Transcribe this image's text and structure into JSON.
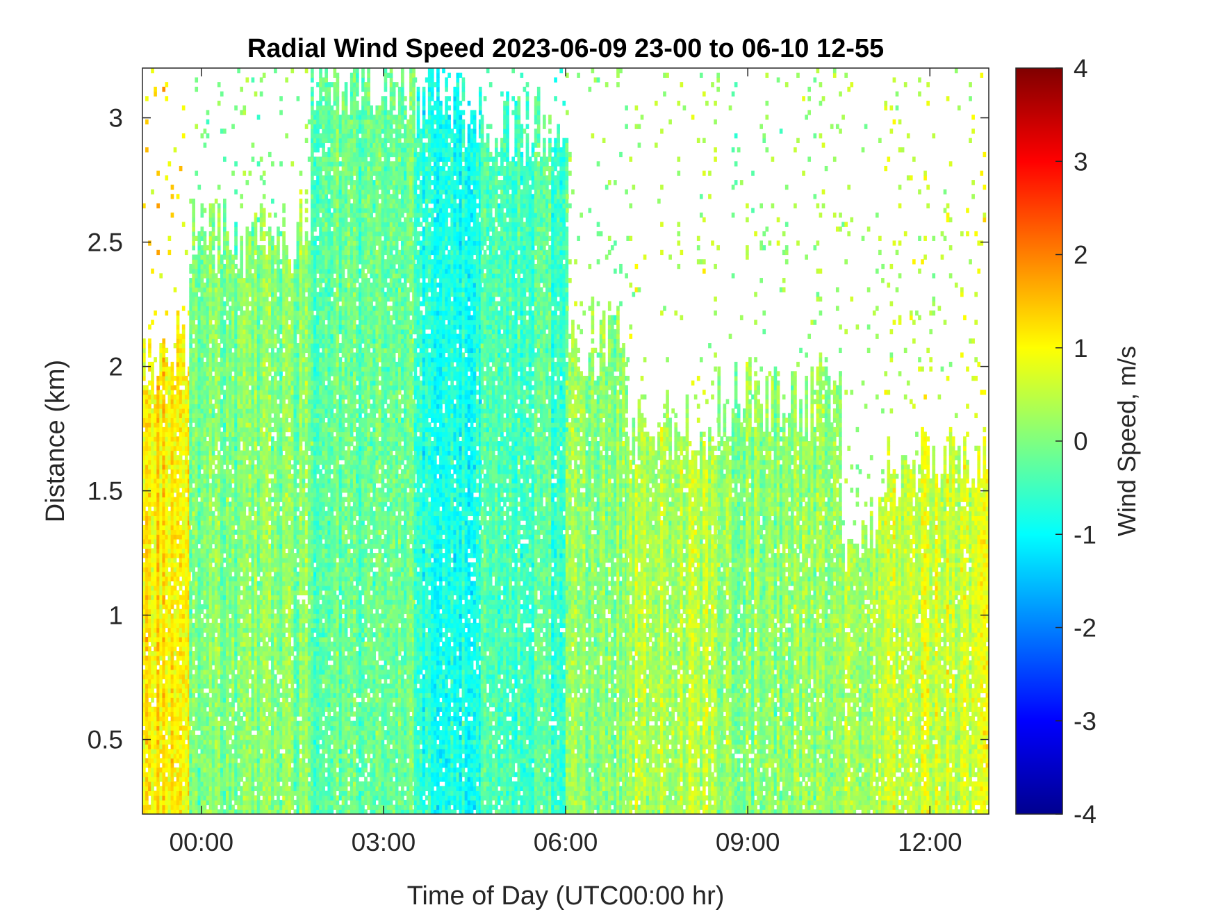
{
  "chart_data": {
    "type": "heatmap",
    "title": "Radial Wind Speed 2023-06-09 23-00 to 06-10 12-55",
    "xlabel": "Time of Day (UTC00:00 hr)",
    "ylabel": "Distance (km)",
    "colorbar_label": "Wind Speed, m/s",
    "colormap": "jet",
    "x_range_hours": [
      -0.97,
      12.97
    ],
    "y_range_km": [
      0.2,
      3.2
    ],
    "x_ticks": [
      {
        "value": 0,
        "label": "00:00"
      },
      {
        "value": 3,
        "label": "03:00"
      },
      {
        "value": 6,
        "label": "06:00"
      },
      {
        "value": 9,
        "label": "09:00"
      },
      {
        "value": 12,
        "label": "12:00"
      }
    ],
    "y_ticks": [
      {
        "value": 0.5,
        "label": "0.5"
      },
      {
        "value": 1,
        "label": "1"
      },
      {
        "value": 1.5,
        "label": "1.5"
      },
      {
        "value": 2,
        "label": "2"
      },
      {
        "value": 2.5,
        "label": "2.5"
      },
      {
        "value": 3,
        "label": "3"
      }
    ],
    "color_range": [
      -4,
      4
    ],
    "colorbar_ticks": [
      {
        "value": -4,
        "label": "-4"
      },
      {
        "value": -3,
        "label": "-3"
      },
      {
        "value": -2,
        "label": "-2"
      },
      {
        "value": -1,
        "label": "-1"
      },
      {
        "value": 0,
        "label": "0"
      },
      {
        "value": 1,
        "label": "1"
      },
      {
        "value": 2,
        "label": "2"
      },
      {
        "value": 3,
        "label": "3"
      },
      {
        "value": 4,
        "label": "4"
      }
    ],
    "data_coverage": [
      {
        "t0": -0.97,
        "t1": -0.2,
        "top_km": 2.05,
        "mean_ms": 1.1
      },
      {
        "t0": -0.2,
        "t1": 1.8,
        "top_km": 2.5,
        "mean_ms": 0.0
      },
      {
        "t0": 1.8,
        "t1": 3.5,
        "top_km": 3.15,
        "mean_ms": -0.2
      },
      {
        "t0": 3.5,
        "t1": 4.6,
        "top_km": 3.05,
        "mean_ms": -0.8
      },
      {
        "t0": 4.6,
        "t1": 6.0,
        "top_km": 2.95,
        "mean_ms": -0.4
      },
      {
        "t0": 6.0,
        "t1": 7.0,
        "top_km": 2.1,
        "mean_ms": 0.1
      },
      {
        "t0": 7.0,
        "t1": 8.5,
        "top_km": 1.75,
        "mean_ms": 0.4
      },
      {
        "t0": 8.5,
        "t1": 10.5,
        "top_km": 1.85,
        "mean_ms": 0.1
      },
      {
        "t0": 10.5,
        "t1": 11.2,
        "top_km": 1.3,
        "mean_ms": 0.3
      },
      {
        "t0": 11.2,
        "t1": 12.97,
        "top_km": 1.6,
        "mean_ms": 0.6
      }
    ]
  }
}
